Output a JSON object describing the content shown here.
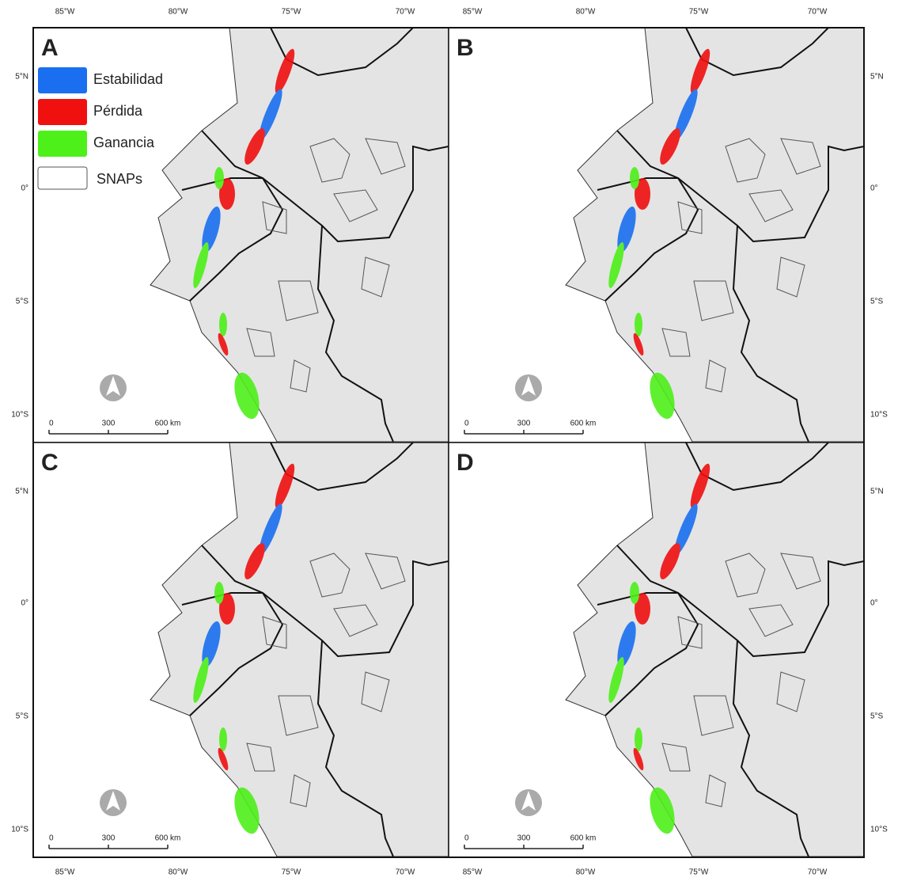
{
  "panels": [
    {
      "label": "A"
    },
    {
      "label": "B"
    },
    {
      "label": "C"
    },
    {
      "label": "D"
    }
  ],
  "legend": [
    {
      "label": "Estabilidad",
      "color": "#1a6ff0"
    },
    {
      "label": "Pérdida",
      "color": "#f01010"
    },
    {
      "label": "Ganancia",
      "color": "#4ef01a"
    },
    {
      "label": "SNAPs",
      "color": "#ffffff"
    }
  ],
  "lon_labels": [
    "85°W",
    "80°W",
    "75°W",
    "70°W"
  ],
  "lat_labels": [
    "5°N",
    "0°",
    "5°S",
    "10°S"
  ],
  "scale_bar": [
    "0",
    "300",
    "600 km"
  ]
}
